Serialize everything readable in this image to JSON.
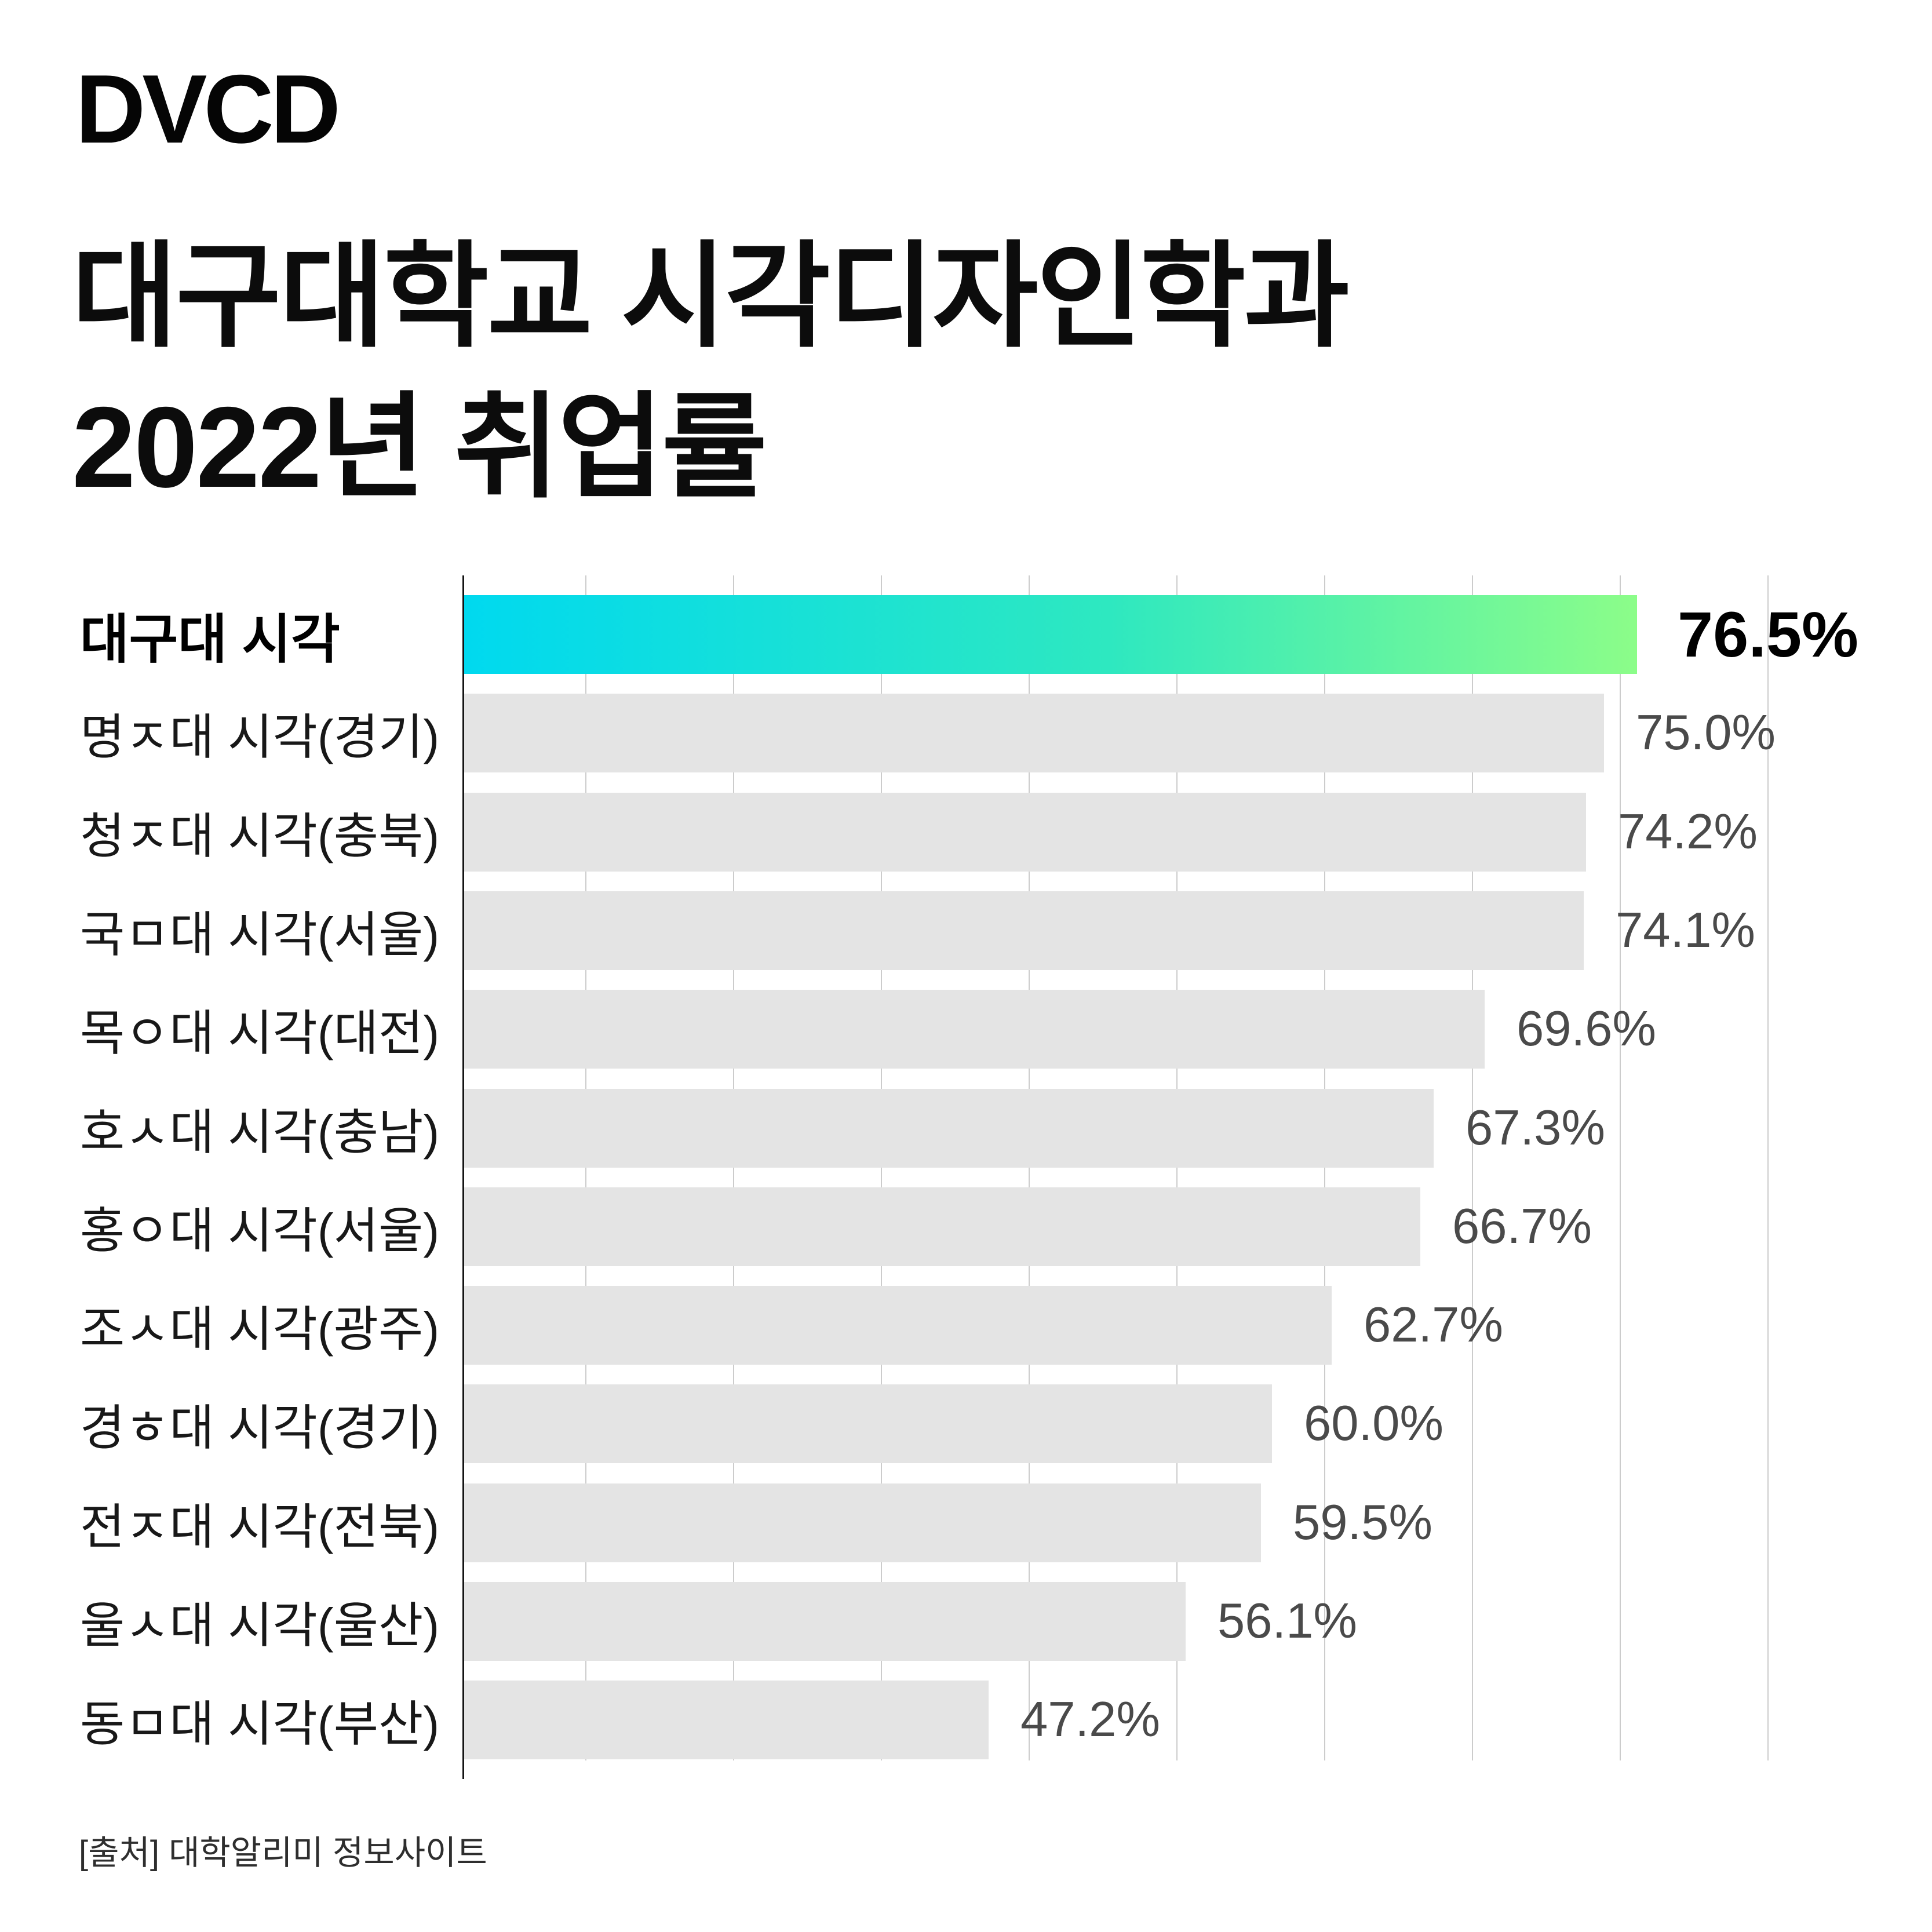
{
  "brand": {
    "logo_text": "DVCD"
  },
  "header": {
    "title_line1": "대구대학교 시각디자인학과",
    "title_line2": "2022년 취업률"
  },
  "chart_data": {
    "type": "bar",
    "orientation": "horizontal",
    "title": "대구대학교 시각디자인학과 2022년 취업률",
    "categories": [
      "대구대 시각",
      "명ㅈ대 시각(경기)",
      "청ㅈ대 시각(충북)",
      "국ㅁ대 시각(서울)",
      "목ㅇ대 시각(대전)",
      "호ㅅ대 시각(충남)",
      "홍ㅇ대 시각(서울)",
      "조ㅅ대 시각(광주)",
      "경ㅎ대 시각(경기)",
      "전ㅈ대 시각(전북)",
      "울ㅅ대 시각(울산)",
      "동ㅁ대 시각(부산)"
    ],
    "values": [
      76.5,
      75.0,
      74.2,
      74.1,
      69.6,
      67.3,
      66.7,
      62.7,
      60.0,
      59.5,
      56.1,
      47.2
    ],
    "value_labels": [
      "76.5%",
      "75.0%",
      "74.2%",
      "74.1%",
      "69.6%",
      "67.3%",
      "66.7%",
      "62.7%",
      "60.0%",
      "59.5%",
      "56.1%",
      "47.2%"
    ],
    "highlighted_index": 0,
    "xlabel": "",
    "ylabel": "",
    "xlim": [
      23.5,
      85
    ],
    "grid": true,
    "legend_position": "none",
    "bar_color": "#e4e4e4",
    "highlight_gradient": [
      "#00d9ef",
      "#8cfd89"
    ]
  },
  "footer": {
    "source": "[출처] 대학알리미 정보사이트"
  },
  "colors": {
    "background": "#ffffff",
    "axis": "#141414",
    "gridline": "#cccccc",
    "bar_gray": "#e4e4e4",
    "highlight_start": "#00d9ef",
    "highlight_end": "#8cfd89",
    "value_label": "#4a4a4a",
    "text": "#0c0c0c"
  }
}
